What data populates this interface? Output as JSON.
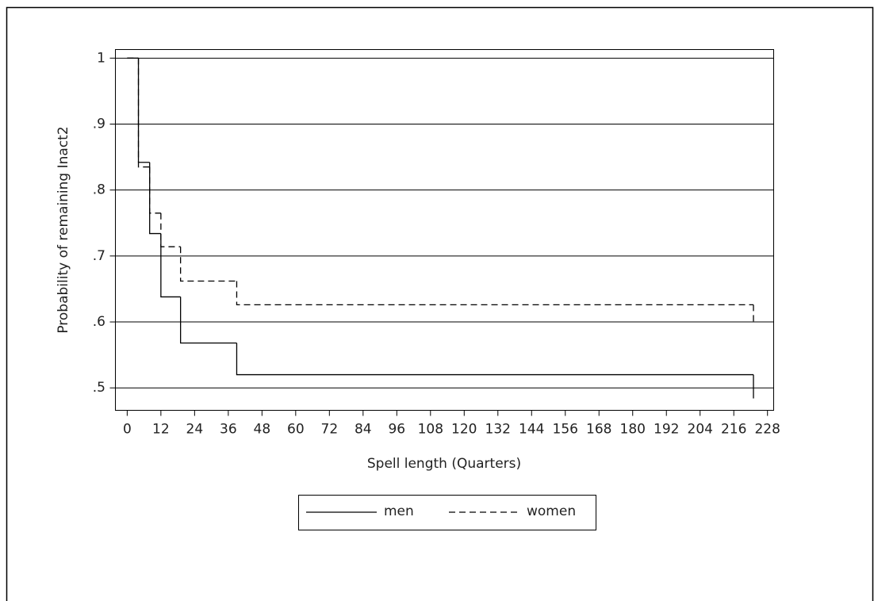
{
  "chart_data": {
    "type": "step",
    "ylabel": "Probability of remaining Inact2",
    "xlabel": "Spell length (Quarters)",
    "xlim": [
      -4.2,
      230.2
    ],
    "ylim": [
      0.466,
      1.013
    ],
    "xticks": [
      0,
      12,
      24,
      36,
      48,
      60,
      72,
      84,
      96,
      108,
      120,
      132,
      144,
      156,
      168,
      180,
      192,
      204,
      216,
      228
    ],
    "yticks": [
      {
        "value": 0.5,
        "label": ".5"
      },
      {
        "value": 0.6,
        "label": ".6"
      },
      {
        "value": 0.7,
        "label": ".7"
      },
      {
        "value": 0.8,
        "label": ".8"
      },
      {
        "value": 0.9,
        "label": ".9"
      },
      1
    ],
    "grid": true,
    "legend": "bottom",
    "series": [
      {
        "name": "men",
        "color": "#000000",
        "dash": "solid",
        "x": [
          0,
          4,
          8,
          12,
          19,
          39,
          223
        ],
        "values": [
          1,
          0.842,
          0.734,
          0.638,
          0.568,
          0.52,
          0.484
        ]
      },
      {
        "name": "women",
        "color": "#000000",
        "dash": "dashed",
        "x": [
          0,
          4,
          8,
          12,
          19,
          39,
          223
        ],
        "values": [
          1,
          0.835,
          0.765,
          0.714,
          0.662,
          0.626,
          0.6
        ]
      }
    ]
  }
}
